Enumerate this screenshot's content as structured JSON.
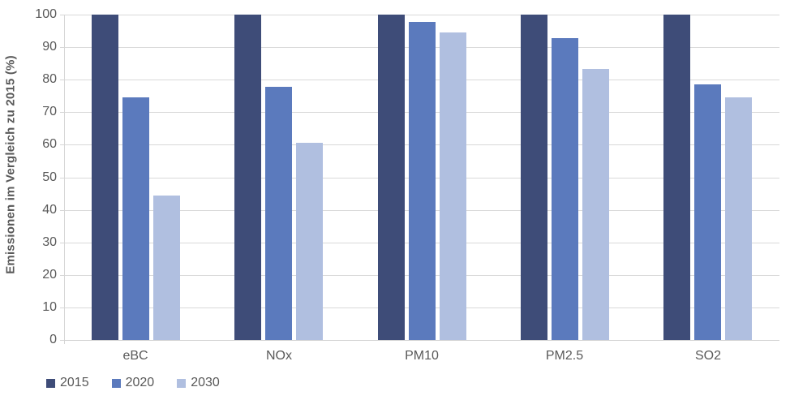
{
  "chart_data": {
    "type": "bar",
    "title": "",
    "xlabel": "",
    "ylabel": "Emissionen im Vergleich zu 2015 (%)",
    "categories": [
      "eBC",
      "NOx",
      "PM10",
      "PM2.5",
      "SO2"
    ],
    "series": [
      {
        "name": "2015",
        "color": "#3E4C78",
        "values": [
          100,
          100,
          100,
          100,
          100
        ]
      },
      {
        "name": "2020",
        "color": "#5B7ABD",
        "values": [
          74.5,
          77.9,
          97.8,
          92.8,
          78.6
        ]
      },
      {
        "name": "2030",
        "color": "#B0BFE0",
        "values": [
          44.4,
          60.5,
          94.6,
          83.3,
          74.5
        ]
      }
    ],
    "ylim": [
      0,
      100
    ],
    "yticks": [
      0,
      10,
      20,
      30,
      40,
      50,
      60,
      70,
      80,
      90,
      100
    ],
    "grid": true,
    "legend_position": "bottom-left",
    "colors": {
      "gridline": "#d9d9d9",
      "axis": "#d6d6d6",
      "text": "#595959"
    }
  }
}
